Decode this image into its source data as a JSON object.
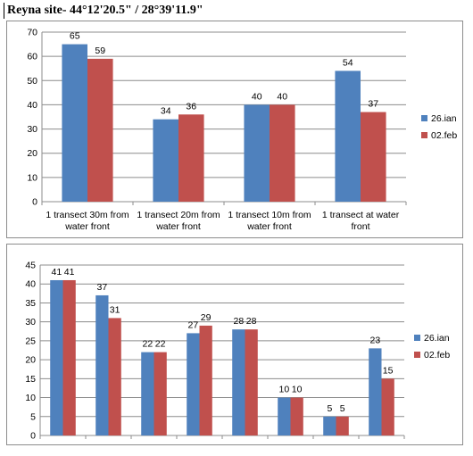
{
  "page_title": "Reyna site- 44°12'20.5\" / 28°39'11.9\"",
  "colors": {
    "series1": "#4F81BD",
    "series2": "#C0504D",
    "grid": "#8c8c8c",
    "axis": "#8c8c8c"
  },
  "chart_data": [
    {
      "type": "bar",
      "categories": [
        [
          "1  transect 30m  from",
          "water front"
        ],
        [
          "1  transect 20m  from",
          "water front"
        ],
        [
          "1  transect 10m  from",
          "water front"
        ],
        [
          "1  transect at water",
          "front"
        ]
      ],
      "series": [
        {
          "name": "26.ian",
          "values": [
            65,
            34,
            40,
            54
          ]
        },
        {
          "name": "02.feb",
          "values": [
            59,
            36,
            40,
            37
          ]
        }
      ],
      "ylim": [
        0,
        70
      ],
      "yticks": [
        0,
        10,
        20,
        30,
        40,
        50,
        60,
        70
      ],
      "grid": true,
      "legend": "right"
    },
    {
      "type": "bar",
      "categories": [
        "",
        "",
        "",
        "",
        "",
        "",
        "",
        ""
      ],
      "series": [
        {
          "name": "26.ian",
          "values": [
            41,
            37,
            22,
            27,
            28,
            10,
            5,
            23
          ]
        },
        {
          "name": "02.feb",
          "values": [
            41,
            31,
            22,
            29,
            28,
            10,
            5,
            15
          ]
        }
      ],
      "ylim": [
        0,
        45
      ],
      "yticks": [
        0,
        5,
        10,
        15,
        20,
        25,
        30,
        35,
        40,
        45
      ],
      "grid": true,
      "legend": "right"
    }
  ]
}
